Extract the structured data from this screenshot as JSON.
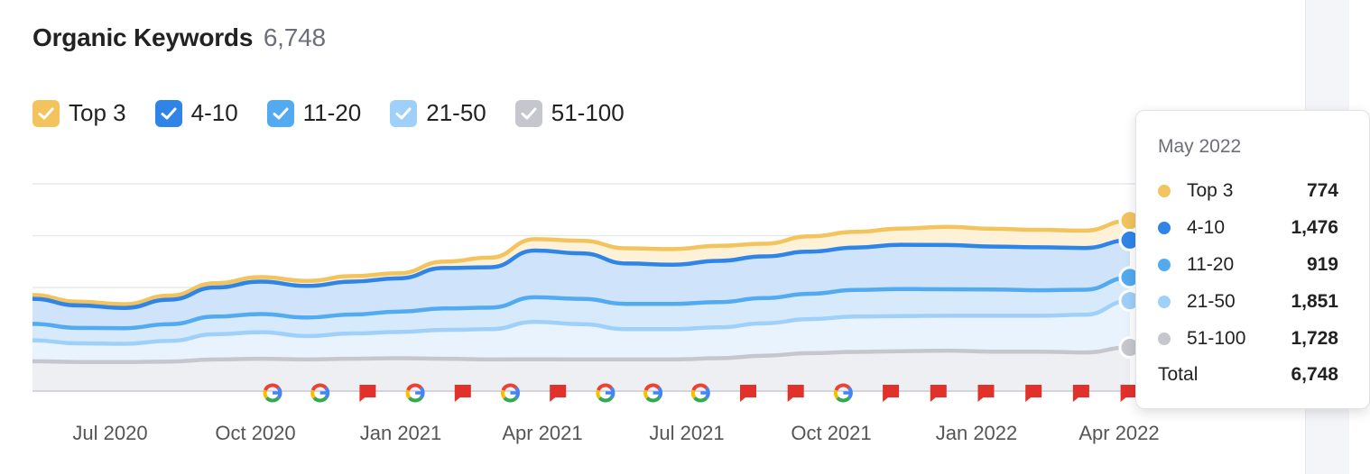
{
  "header": {
    "title": "Organic Keywords",
    "count": "6,748"
  },
  "legend": [
    {
      "label": "Top 3",
      "color": "#f3c35e",
      "checked": true
    },
    {
      "label": "4-10",
      "color": "#2f84e8",
      "checked": true
    },
    {
      "label": "11-20",
      "color": "#52aaf0",
      "checked": true
    },
    {
      "label": "21-50",
      "color": "#9fd0fa",
      "checked": true
    },
    {
      "label": "51-100",
      "color": "#c6c7ce",
      "checked": true
    }
  ],
  "tooltip": {
    "title": "May 2022",
    "rows": [
      {
        "label": "Top 3",
        "value": "774",
        "color": "#f3c35e"
      },
      {
        "label": "4-10",
        "value": "1,476",
        "color": "#2f84e8"
      },
      {
        "label": "11-20",
        "value": "919",
        "color": "#52aaf0"
      },
      {
        "label": "21-50",
        "value": "1,851",
        "color": "#9fd0fa"
      },
      {
        "label": "51-100",
        "value": "1,728",
        "color": "#c6c7ce"
      }
    ],
    "total_label": "Total",
    "total_value": "6,748"
  },
  "chart_data": {
    "type": "area",
    "stacked": true,
    "x_tick_labels": [
      "Jul 2020",
      "Oct 2020",
      "Jan 2021",
      "Apr 2021",
      "Jul 2021",
      "Oct 2021",
      "Jan 2022",
      "Apr 2022"
    ],
    "x": [
      "2020-05",
      "2020-06",
      "2020-07",
      "2020-08",
      "2020-09",
      "2020-10",
      "2020-11",
      "2020-12",
      "2021-01",
      "2021-02",
      "2021-03",
      "2021-04",
      "2021-05",
      "2021-06",
      "2021-07",
      "2021-08",
      "2021-09",
      "2021-10",
      "2021-11",
      "2021-12",
      "2022-01",
      "2022-02",
      "2022-03",
      "2022-04",
      "2022-05"
    ],
    "y_max": 8200,
    "grid": true,
    "series": [
      {
        "name": "51-100",
        "color": "#c6c7ce",
        "values": [
          1180,
          1150,
          1150,
          1170,
          1250,
          1280,
          1250,
          1280,
          1300,
          1280,
          1250,
          1260,
          1250,
          1250,
          1250,
          1300,
          1400,
          1500,
          1550,
          1580,
          1600,
          1560,
          1560,
          1530,
          1728
        ]
      },
      {
        "name": "21-50",
        "color": "#9fd0fa",
        "values": [
          830,
          740,
          720,
          820,
          1000,
          1050,
          930,
          1000,
          1040,
          1140,
          1200,
          1480,
          1400,
          1200,
          1200,
          1220,
          1280,
          1350,
          1400,
          1390,
          1380,
          1420,
          1420,
          1490,
          1851
        ]
      },
      {
        "name": "11-20",
        "color": "#52aaf0",
        "values": [
          650,
          610,
          620,
          660,
          700,
          720,
          730,
          750,
          800,
          850,
          850,
          970,
          1000,
          1000,
          1000,
          1000,
          1000,
          1000,
          1050,
          1070,
          1050,
          1040,
          1010,
          990,
          919
        ]
      },
      {
        "name": "4-10",
        "color": "#2f84e8",
        "values": [
          990,
          890,
          800,
          970,
          1150,
          1280,
          1250,
          1300,
          1320,
          1600,
          1600,
          1850,
          1800,
          1600,
          1550,
          1630,
          1650,
          1670,
          1680,
          1750,
          1750,
          1700,
          1700,
          1650,
          1476
        ]
      },
      {
        "name": "Top 3",
        "color": "#f3c35e",
        "values": [
          150,
          150,
          150,
          160,
          170,
          180,
          200,
          220,
          200,
          250,
          380,
          450,
          500,
          600,
          620,
          600,
          500,
          600,
          620,
          640,
          720,
          700,
          690,
          690,
          774
        ]
      }
    ],
    "events": [
      "google",
      "google",
      "flag",
      "google",
      "flag",
      "google",
      "flag",
      "google",
      "google",
      "google",
      "flag",
      "flag",
      "google",
      "flag",
      "flag",
      "flag",
      "flag",
      "flag",
      "flag"
    ]
  }
}
